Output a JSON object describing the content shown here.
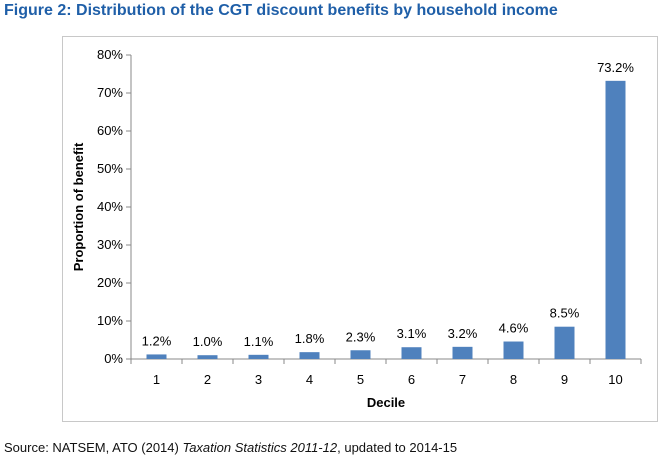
{
  "figure": {
    "title": "Figure 2: Distribution of the CGT discount benefits by household income"
  },
  "source": {
    "prefix": "Source: NATSEM, ATO (2014) ",
    "title": "Taxation Statistics 2011-12",
    "suffix": ", updated to 2014-15"
  },
  "chart_data": {
    "type": "bar",
    "title": "",
    "xlabel": "Decile",
    "ylabel": "Proportion of benefit",
    "categories": [
      "1",
      "2",
      "3",
      "4",
      "5",
      "6",
      "7",
      "8",
      "9",
      "10"
    ],
    "values": [
      1.2,
      1.0,
      1.1,
      1.8,
      2.3,
      3.1,
      3.2,
      4.6,
      8.5,
      73.2
    ],
    "data_labels": [
      "1.2%",
      "1.0%",
      "1.1%",
      "1.8%",
      "2.3%",
      "3.1%",
      "3.2%",
      "4.6%",
      "8.5%",
      "73.2%"
    ],
    "ylim": [
      0,
      80
    ],
    "yticks": [
      0,
      10,
      20,
      30,
      40,
      50,
      60,
      70,
      80
    ],
    "ytick_labels": [
      "0%",
      "10%",
      "20%",
      "30%",
      "40%",
      "50%",
      "60%",
      "70%",
      "80%"
    ],
    "grid": false,
    "legend": "none",
    "bar_color": "#4f81bd"
  }
}
